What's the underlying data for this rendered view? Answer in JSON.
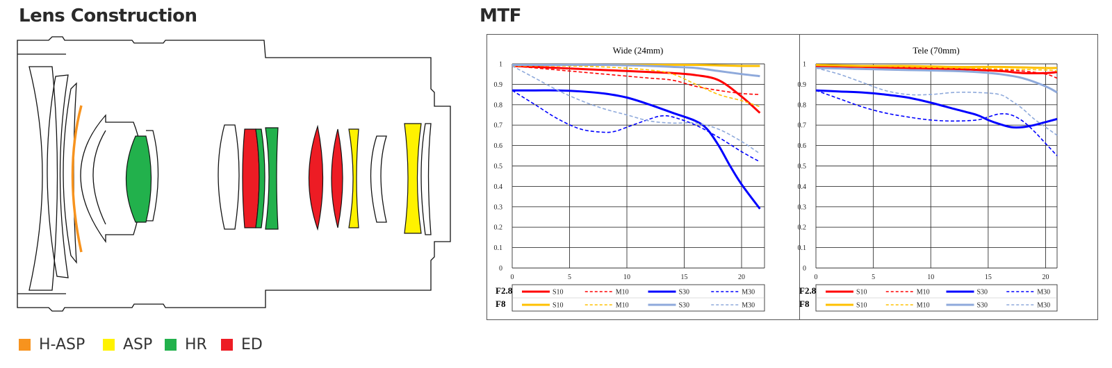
{
  "lens_section": {
    "title": "Lens Construction",
    "legend": [
      {
        "label": "H-ASP",
        "color": "#f7931e"
      },
      {
        "label": "ASP",
        "color": "#fff200"
      },
      {
        "label": "HR",
        "color": "#22b14c"
      },
      {
        "label": "ED",
        "color": "#ed1c24"
      }
    ]
  },
  "mtf_section": {
    "title": "MTF",
    "row_labels": [
      "F2.8",
      "F8"
    ],
    "colors": {
      "F2.8": "#ff0000",
      "F8": "#ffc000",
      "S10_F2.8": "#ff0000",
      "S30_F2.8": "#0000ff",
      "S10_F8": "#ffc000",
      "S30_F8": "#8ea9db"
    }
  },
  "chart_data": [
    {
      "type": "line",
      "title": "Wide (24mm)",
      "xlim": [
        0,
        22
      ],
      "ylim": [
        0,
        1
      ],
      "xticks": [
        "0",
        "5",
        "10",
        "15",
        "20"
      ],
      "yticks": [
        "0",
        "0.1",
        "0.2",
        "0.3",
        "0.4",
        "0.5",
        "0.6",
        "0.7",
        "0.8",
        "0.9",
        "1"
      ],
      "grid": true,
      "legend_position": "bottom",
      "series": [
        {
          "name": "S10",
          "aperture": "F2.8",
          "style": "solid",
          "color": "#ff0000",
          "x": [
            0,
            2,
            4,
            6,
            8,
            10,
            12,
            14,
            16,
            18,
            20,
            21.6
          ],
          "y": [
            0.99,
            0.985,
            0.98,
            0.975,
            0.97,
            0.965,
            0.96,
            0.955,
            0.945,
            0.92,
            0.84,
            0.76
          ]
        },
        {
          "name": "M10",
          "aperture": "F2.8",
          "style": "dashed",
          "color": "#ff0000",
          "x": [
            0,
            2,
            4,
            6,
            8,
            10,
            12,
            14,
            16,
            18,
            20,
            21.6
          ],
          "y": [
            0.99,
            0.98,
            0.97,
            0.96,
            0.95,
            0.94,
            0.93,
            0.92,
            0.89,
            0.87,
            0.855,
            0.85
          ]
        },
        {
          "name": "S30",
          "aperture": "F2.8",
          "style": "solid",
          "color": "#0000ff",
          "x": [
            0,
            2,
            4,
            6,
            8,
            10,
            12,
            14,
            16,
            17,
            18,
            19,
            20,
            21.6
          ],
          "y": [
            0.87,
            0.87,
            0.87,
            0.865,
            0.855,
            0.835,
            0.8,
            0.76,
            0.72,
            0.68,
            0.6,
            0.5,
            0.41,
            0.29
          ]
        },
        {
          "name": "M30",
          "aperture": "F2.8",
          "style": "dashed",
          "color": "#0000ff",
          "x": [
            0,
            2,
            4,
            6,
            8,
            9,
            10,
            12,
            13,
            14,
            16,
            18,
            20,
            21.6
          ],
          "y": [
            0.87,
            0.8,
            0.73,
            0.68,
            0.665,
            0.67,
            0.69,
            0.73,
            0.745,
            0.74,
            0.7,
            0.64,
            0.57,
            0.52
          ]
        },
        {
          "name": "S10",
          "aperture": "F8",
          "style": "solid",
          "color": "#ffc000",
          "x": [
            0,
            4,
            8,
            12,
            16,
            20,
            21.6
          ],
          "y": [
            0.995,
            0.995,
            0.995,
            0.995,
            0.995,
            0.99,
            0.99
          ]
        },
        {
          "name": "M10",
          "aperture": "F8",
          "style": "dashed",
          "color": "#ffc000",
          "x": [
            0,
            4,
            8,
            12,
            14,
            16,
            18,
            20,
            21.6
          ],
          "y": [
            0.99,
            0.99,
            0.985,
            0.97,
            0.95,
            0.9,
            0.85,
            0.82,
            0.79
          ]
        },
        {
          "name": "S30",
          "aperture": "F8",
          "style": "solid",
          "color": "#8ea9db",
          "x": [
            0,
            4,
            8,
            12,
            14,
            16,
            18,
            20,
            21.6
          ],
          "y": [
            0.995,
            0.995,
            0.995,
            0.99,
            0.985,
            0.98,
            0.965,
            0.95,
            0.94
          ]
        },
        {
          "name": "M30",
          "aperture": "F8",
          "style": "dashed",
          "color": "#8ea9db",
          "x": [
            0,
            2,
            4,
            6,
            8,
            10,
            12,
            14,
            16,
            18,
            20,
            21.6
          ],
          "y": [
            0.99,
            0.93,
            0.87,
            0.82,
            0.78,
            0.75,
            0.72,
            0.71,
            0.71,
            0.68,
            0.62,
            0.56
          ]
        }
      ]
    },
    {
      "type": "line",
      "title": "Tele (70mm)",
      "xlim": [
        0,
        21
      ],
      "ylim": [
        0,
        1
      ],
      "xticks": [
        "0",
        "5",
        "10",
        "15",
        "20"
      ],
      "yticks": [
        "0",
        "0.1",
        "0.2",
        "0.3",
        "0.4",
        "0.5",
        "0.6",
        "0.7",
        "0.8",
        "0.9",
        "1"
      ],
      "grid": true,
      "legend_position": "bottom",
      "series": [
        {
          "name": "S10",
          "aperture": "F2.8",
          "style": "solid",
          "color": "#ff0000",
          "x": [
            0,
            4,
            8,
            12,
            16,
            18,
            20,
            21
          ],
          "y": [
            0.99,
            0.985,
            0.98,
            0.975,
            0.965,
            0.955,
            0.955,
            0.96
          ]
        },
        {
          "name": "M10",
          "aperture": "F2.8",
          "style": "dashed",
          "color": "#ff0000",
          "x": [
            0,
            4,
            8,
            12,
            16,
            18,
            20,
            21
          ],
          "y": [
            0.99,
            0.985,
            0.98,
            0.975,
            0.97,
            0.965,
            0.95,
            0.93
          ]
        },
        {
          "name": "S30",
          "aperture": "F2.8",
          "style": "solid",
          "color": "#0000ff",
          "x": [
            0,
            2,
            4,
            6,
            8,
            10,
            12,
            14,
            15,
            16,
            17,
            18,
            19,
            20,
            21
          ],
          "y": [
            0.87,
            0.865,
            0.86,
            0.85,
            0.835,
            0.81,
            0.78,
            0.75,
            0.725,
            0.705,
            0.69,
            0.69,
            0.7,
            0.715,
            0.73
          ]
        },
        {
          "name": "M30",
          "aperture": "F2.8",
          "style": "dashed",
          "color": "#0000ff",
          "x": [
            0,
            2,
            4,
            6,
            8,
            10,
            12,
            14,
            15,
            16,
            17,
            18,
            19,
            20,
            21
          ],
          "y": [
            0.87,
            0.83,
            0.79,
            0.76,
            0.74,
            0.725,
            0.72,
            0.725,
            0.74,
            0.755,
            0.75,
            0.72,
            0.67,
            0.61,
            0.55
          ]
        },
        {
          "name": "S10",
          "aperture": "F8",
          "style": "solid",
          "color": "#ffc000",
          "x": [
            0,
            4,
            8,
            12,
            16,
            20,
            21
          ],
          "y": [
            0.995,
            0.99,
            0.99,
            0.985,
            0.985,
            0.98,
            0.98
          ]
        },
        {
          "name": "M10",
          "aperture": "F8",
          "style": "dashed",
          "color": "#ffc000",
          "x": [
            0,
            4,
            8,
            12,
            16,
            20,
            21
          ],
          "y": [
            0.995,
            0.99,
            0.985,
            0.98,
            0.975,
            0.97,
            0.965
          ]
        },
        {
          "name": "S30",
          "aperture": "F8",
          "style": "solid",
          "color": "#8ea9db",
          "x": [
            0,
            4,
            8,
            12,
            14,
            16,
            18,
            20,
            21
          ],
          "y": [
            0.98,
            0.975,
            0.97,
            0.965,
            0.96,
            0.95,
            0.93,
            0.89,
            0.86
          ]
        },
        {
          "name": "M30",
          "aperture": "F8",
          "style": "dashed",
          "color": "#8ea9db",
          "x": [
            0,
            2,
            4,
            6,
            8,
            10,
            12,
            14,
            16,
            17,
            18,
            19,
            20,
            21
          ],
          "y": [
            0.98,
            0.95,
            0.91,
            0.87,
            0.85,
            0.85,
            0.86,
            0.86,
            0.85,
            0.82,
            0.78,
            0.73,
            0.69,
            0.65
          ]
        }
      ]
    }
  ]
}
